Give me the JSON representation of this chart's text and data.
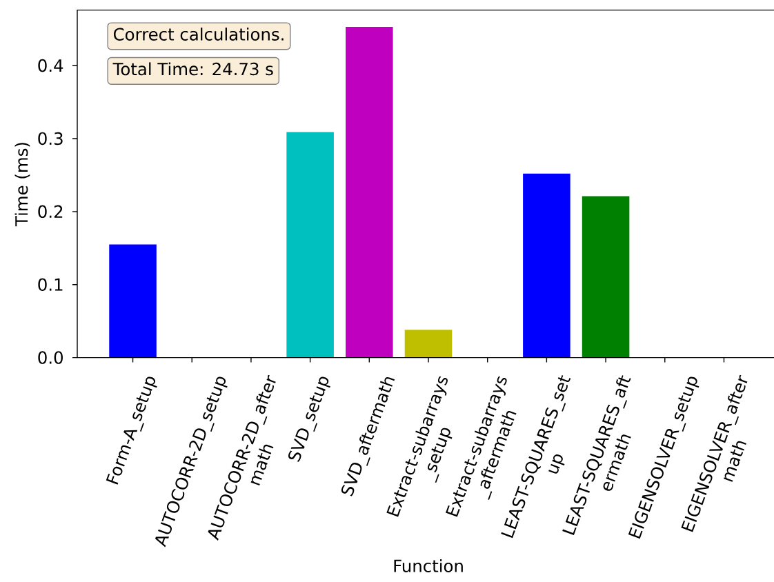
{
  "chart_data": {
    "type": "bar",
    "xlabel": "Function",
    "ylabel": "Time (ms)",
    "categories": [
      "Form-A_setup",
      "AUTOCORR-2D_setup",
      "AUTOCORR-2D_after\nmath",
      "SVD_setup",
      "SVD_aftermath",
      "Extract-subarrays\n_setup",
      "Extract-subarrays\n_aftermath",
      "LEAST-SQUARES_set\nup",
      "LEAST-SQUARES_aft\nermath",
      "EIGENSOLVER_setup",
      "EIGENSOLVER_after\nmath"
    ],
    "values": [
      0.155,
      0,
      0,
      0.309,
      0.453,
      0.038,
      0,
      0.252,
      0.221,
      0,
      0
    ],
    "colors": [
      "#0000ff",
      "#008000",
      "#ff0000",
      "#00bfbf",
      "#bf00bf",
      "#bfbf00",
      "#000000",
      "#0000ff",
      "#008000",
      "#ff0000",
      "#00bfbf"
    ],
    "ylim": [
      0,
      0.476
    ],
    "yticks": [
      {
        "value": 0,
        "label": "0.0"
      },
      0.1,
      0.2,
      0.3,
      0.4
    ],
    "annotations": [
      "Correct calculations.",
      "Total Time: 24.73 s"
    ]
  }
}
